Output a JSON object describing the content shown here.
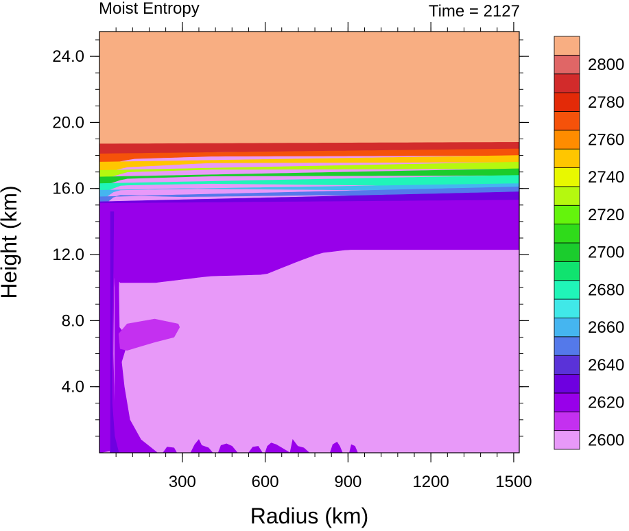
{
  "chart_data": {
    "type": "heatmap",
    "title_left": "Moist Entropy",
    "title_right": "Time = 2127",
    "xlabel": "Radius (km)",
    "ylabel": "Height (km)",
    "xlim": [
      0,
      1520
    ],
    "ylim": [
      0,
      25.5
    ],
    "x_ticks": [
      {
        "value": 300,
        "label": "300"
      },
      {
        "value": 600,
        "label": "600"
      },
      {
        "value": 900,
        "label": "900"
      },
      {
        "value": 1200,
        "label": "1200"
      },
      {
        "value": 1500,
        "label": "1500"
      }
    ],
    "y_ticks": [
      {
        "value": 4,
        "label": "4.0"
      },
      {
        "value": 8,
        "label": "8.0"
      },
      {
        "value": 12,
        "label": "12.0"
      },
      {
        "value": 16,
        "label": "16.0"
      },
      {
        "value": 20,
        "label": "20.0"
      },
      {
        "value": 24,
        "label": "24.0"
      }
    ],
    "x_minor_step": 60,
    "y_minor_step": 1,
    "colorbar": {
      "levels": [
        {
          "color": "#E899F9",
          "label": "2600"
        },
        {
          "color": "#C430F0",
          "label": ""
        },
        {
          "color": "#9800EA",
          "label": "2620"
        },
        {
          "color": "#6E00E0",
          "label": ""
        },
        {
          "color": "#5A32D8",
          "label": "2640"
        },
        {
          "color": "#5479EA",
          "label": ""
        },
        {
          "color": "#45B5F0",
          "label": "2660"
        },
        {
          "color": "#40E8E8",
          "label": ""
        },
        {
          "color": "#20F5B8",
          "label": "2680"
        },
        {
          "color": "#10E36F",
          "label": ""
        },
        {
          "color": "#1BCC2D",
          "label": "2700"
        },
        {
          "color": "#2FDB1A",
          "label": ""
        },
        {
          "color": "#64F40C",
          "label": "2720"
        },
        {
          "color": "#B5F80F",
          "label": ""
        },
        {
          "color": "#E8F800",
          "label": "2740"
        },
        {
          "color": "#FFC600",
          "label": ""
        },
        {
          "color": "#FF8C00",
          "label": "2760"
        },
        {
          "color": "#F5520A",
          "label": ""
        },
        {
          "color": "#E32A08",
          "label": "2780"
        },
        {
          "color": "#D22B2B",
          "label": ""
        },
        {
          "color": "#E06666",
          "label": "2800"
        },
        {
          "color": "#F8AE82",
          "label": ""
        }
      ]
    },
    "fields": [
      {
        "name": "stratosphere",
        "level": 21,
        "x0": 0,
        "x1": 1520,
        "base": [
          [
            0,
            18.5
          ],
          [
            200,
            18.7
          ],
          [
            1520,
            18.8
          ]
        ],
        "top": 25.5
      },
      {
        "name": "trop-red",
        "level": 19,
        "x0": 0,
        "x1": 1520,
        "base": [
          [
            0,
            18.0
          ],
          [
            120,
            18.0
          ],
          [
            400,
            18.2
          ],
          [
            1520,
            18.4
          ]
        ],
        "top": [
          [
            0,
            18.7
          ],
          [
            1520,
            18.8
          ]
        ]
      },
      {
        "name": "trop-orange",
        "level": 17,
        "x0": 0,
        "x1": 1520,
        "base": [
          [
            0,
            17.4
          ],
          [
            120,
            17.8
          ],
          [
            400,
            17.95
          ],
          [
            1520,
            18.0
          ]
        ],
        "top": [
          [
            0,
            18.1
          ],
          [
            1520,
            18.4
          ]
        ]
      },
      {
        "name": "trop-yellow",
        "level": 15,
        "x0": 0,
        "x1": 1520,
        "base": [
          [
            0,
            16.9
          ],
          [
            100,
            17.3
          ],
          [
            400,
            17.55
          ],
          [
            1520,
            17.6
          ]
        ],
        "top": [
          [
            0,
            17.6
          ],
          [
            1520,
            18.0
          ]
        ]
      },
      {
        "name": "trop-ygreen",
        "level": 13,
        "x0": 0,
        "x1": 1520,
        "base": [
          [
            0,
            16.5
          ],
          [
            100,
            17.0
          ],
          [
            400,
            17.15
          ],
          [
            1520,
            17.2
          ]
        ],
        "top": [
          [
            0,
            17.1
          ],
          [
            1520,
            17.6
          ]
        ]
      },
      {
        "name": "trop-green",
        "level": 10,
        "x0": 0,
        "x1": 1520,
        "base": [
          [
            0,
            16.1
          ],
          [
            90,
            16.6
          ],
          [
            400,
            16.75
          ],
          [
            1520,
            16.8
          ]
        ],
        "top": [
          [
            0,
            16.7
          ],
          [
            1520,
            17.2
          ]
        ]
      },
      {
        "name": "trop-teal",
        "level": 8,
        "x0": 0,
        "x1": 1520,
        "base": [
          [
            0,
            15.7
          ],
          [
            80,
            16.2
          ],
          [
            400,
            16.3
          ],
          [
            1520,
            16.1
          ]
        ],
        "top": [
          [
            0,
            16.3
          ],
          [
            1520,
            16.8
          ]
        ]
      },
      {
        "name": "trop-sky",
        "level": 6,
        "x0": 0,
        "x1": 1520,
        "base": [
          [
            0,
            15.2
          ],
          [
            60,
            15.9
          ],
          [
            300,
            16.0
          ],
          [
            1000,
            15.9
          ],
          [
            1520,
            15.8
          ]
        ],
        "top": [
          [
            0,
            15.9
          ],
          [
            1520,
            16.3
          ]
        ]
      },
      {
        "name": "trop-blue",
        "level": 5,
        "x0": 0,
        "x1": 1520,
        "base": [
          [
            0,
            14.8
          ],
          [
            60,
            15.6
          ],
          [
            300,
            15.5
          ],
          [
            800,
            15.6
          ],
          [
            1520,
            15.5
          ]
        ],
        "top": [
          [
            0,
            15.5
          ],
          [
            1520,
            16.1
          ]
        ]
      },
      {
        "name": "trop-indigo",
        "level": 3,
        "x0": 0,
        "x1": 1520,
        "base": [
          [
            0,
            14.0
          ],
          [
            60,
            14.5
          ],
          [
            200,
            15.0
          ],
          [
            1520,
            15.2
          ]
        ],
        "top": [
          [
            0,
            15.2
          ],
          [
            1520,
            15.8
          ]
        ]
      },
      {
        "name": "upper-purple",
        "level": 2,
        "x0": 0,
        "x1": 1520,
        "base": [
          [
            0,
            12.5
          ],
          [
            60,
            10.3
          ],
          [
            200,
            10.3
          ],
          [
            400,
            10.7
          ],
          [
            600,
            10.8
          ],
          [
            720,
            11.6
          ],
          [
            800,
            12.1
          ],
          [
            900,
            12.3
          ],
          [
            1520,
            12.3
          ]
        ],
        "top": [
          [
            0,
            15.1
          ],
          [
            1520,
            15.3
          ]
        ]
      },
      {
        "name": "core-left",
        "level": 2,
        "poly": [
          [
            0,
            13.6
          ],
          [
            30,
            13.2
          ],
          [
            40,
            11
          ],
          [
            45,
            8
          ],
          [
            52,
            4
          ],
          [
            56,
            2
          ],
          [
            70,
            1
          ],
          [
            100,
            0.3
          ],
          [
            0,
            0
          ]
        ]
      },
      {
        "name": "core-right",
        "level": 2,
        "poly": [
          [
            55,
            14
          ],
          [
            75,
            13
          ],
          [
            70,
            10
          ],
          [
            72,
            7.6
          ],
          [
            86,
            7.3
          ],
          [
            100,
            6.6
          ],
          [
            80,
            5.5
          ],
          [
            90,
            4
          ],
          [
            110,
            2.0
          ],
          [
            150,
            0.8
          ],
          [
            210,
            0
          ],
          [
            55,
            0
          ]
        ]
      },
      {
        "name": "mid-tongue",
        "level": 1,
        "poly": [
          [
            70,
            7.2
          ],
          [
            100,
            7.8
          ],
          [
            200,
            8.1
          ],
          [
            285,
            7.8
          ],
          [
            290,
            7.6
          ],
          [
            270,
            7.0
          ],
          [
            200,
            6.7
          ],
          [
            140,
            6.4
          ],
          [
            100,
            6.2
          ],
          [
            75,
            6.3
          ]
        ]
      },
      {
        "name": "core-deep",
        "level": 2,
        "poly": [
          [
            38,
            15
          ],
          [
            60,
            15
          ],
          [
            60,
            13
          ],
          [
            52,
            10
          ],
          [
            50,
            6
          ],
          [
            55,
            2
          ],
          [
            60,
            0
          ],
          [
            38,
            0
          ],
          [
            40,
            8
          ],
          [
            35,
            13
          ]
        ]
      },
      {
        "name": "core-violet",
        "level": 3,
        "poly": [
          [
            40,
            14.6
          ],
          [
            52,
            14.6
          ],
          [
            50,
            11
          ],
          [
            45,
            7
          ],
          [
            46,
            3
          ],
          [
            55,
            1
          ],
          [
            70,
            0
          ],
          [
            40,
            0
          ]
        ]
      },
      {
        "name": "surface-blob-1",
        "level": 2,
        "poly": [
          [
            230,
            0
          ],
          [
            245,
            0.35
          ],
          [
            270,
            0.3
          ],
          [
            280,
            0
          ]
        ]
      },
      {
        "name": "surface-blob-2",
        "level": 2,
        "poly": [
          [
            330,
            0
          ],
          [
            345,
            0.5
          ],
          [
            360,
            0.8
          ],
          [
            370,
            0.45
          ],
          [
            395,
            0.3
          ],
          [
            410,
            0
          ]
        ]
      },
      {
        "name": "surface-blob-3",
        "level": 2,
        "poly": [
          [
            430,
            0
          ],
          [
            440,
            0.45
          ],
          [
            460,
            0.55
          ],
          [
            480,
            0.4
          ],
          [
            500,
            0
          ]
        ]
      },
      {
        "name": "surface-blob-4",
        "level": 2,
        "poly": [
          [
            540,
            0
          ],
          [
            555,
            0.35
          ],
          [
            575,
            0.4
          ],
          [
            590,
            0
          ]
        ]
      },
      {
        "name": "surface-blob-5",
        "level": 2,
        "poly": [
          [
            600,
            0
          ],
          [
            608,
            0.4
          ],
          [
            622,
            0.6
          ],
          [
            640,
            0.5
          ],
          [
            660,
            0.3
          ],
          [
            690,
            0
          ]
        ]
      },
      {
        "name": "surface-blob-6",
        "level": 2,
        "poly": [
          [
            690,
            0
          ],
          [
            700,
            0.8
          ],
          [
            718,
            0.4
          ],
          [
            740,
            0.3
          ],
          [
            760,
            0
          ]
        ]
      },
      {
        "name": "surface-blob-7",
        "level": 2,
        "poly": [
          [
            835,
            0
          ],
          [
            845,
            0.5
          ],
          [
            860,
            0.65
          ],
          [
            870,
            0.4
          ],
          [
            880,
            0
          ]
        ]
      },
      {
        "name": "surface-blob-8",
        "level": 2,
        "poly": [
          [
            905,
            0
          ],
          [
            912,
            0.5
          ],
          [
            925,
            0.4
          ],
          [
            935,
            0
          ]
        ]
      }
    ]
  }
}
